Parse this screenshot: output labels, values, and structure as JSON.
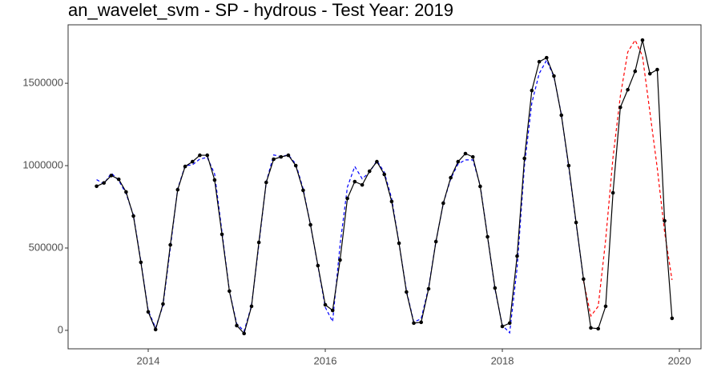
{
  "chart_data": {
    "type": "line",
    "title": "an_wavelet_svm - SP - hydrous - Test Year: 2019",
    "x": [
      2013.417,
      2013.5,
      2013.583,
      2013.667,
      2013.75,
      2013.833,
      2013.917,
      2014,
      2014.083,
      2014.167,
      2014.25,
      2014.333,
      2014.417,
      2014.5,
      2014.583,
      2014.667,
      2014.75,
      2014.833,
      2014.917,
      2015,
      2015.083,
      2015.167,
      2015.25,
      2015.333,
      2015.417,
      2015.5,
      2015.583,
      2015.667,
      2015.75,
      2015.833,
      2015.917,
      2016,
      2016.083,
      2016.167,
      2016.25,
      2016.333,
      2016.417,
      2016.5,
      2016.583,
      2016.667,
      2016.75,
      2016.833,
      2016.917,
      2017,
      2017.083,
      2017.167,
      2017.25,
      2017.333,
      2017.417,
      2017.5,
      2017.583,
      2017.667,
      2017.75,
      2017.833,
      2017.917,
      2018,
      2018.083,
      2018.167,
      2018.25,
      2018.333,
      2018.417,
      2018.5,
      2018.583,
      2018.667,
      2018.75,
      2018.833,
      2018.917,
      2019,
      2019.083,
      2019.167,
      2019.25,
      2019.333,
      2019.417,
      2019.5,
      2019.583,
      2019.667,
      2019.75,
      2019.833,
      2019.917
    ],
    "series": [
      {
        "color": "#0000ff",
        "dashed": true,
        "markers": false,
        "values": [
          915000,
          890000,
          955000,
          910000,
          830000,
          700000,
          420000,
          120000,
          15000,
          150000,
          500000,
          860000,
          1000000,
          1005000,
          1040000,
          1050000,
          950000,
          600000,
          240000,
          40000,
          -5000,
          150000,
          520000,
          900000,
          1065000,
          1055000,
          1065000,
          1010000,
          860000,
          640000,
          390000,
          140000,
          53000,
          520000,
          870000,
          995000,
          920000,
          960000,
          1030000,
          960000,
          800000,
          530000,
          240000,
          50000,
          70000,
          260000,
          540000,
          770000,
          920000,
          1010000,
          1035000,
          1035000,
          880000,
          570000,
          250000,
          30000,
          -15000,
          380000,
          1000000,
          1380000,
          1560000,
          1640000,
          1540000,
          1310000,
          990000,
          650000,
          310000,
          null,
          null,
          null,
          null,
          null,
          null,
          null,
          null,
          null,
          null,
          null,
          null
        ]
      },
      {
        "color": "#ff0000",
        "dashed": true,
        "markers": false,
        "values": [
          null,
          null,
          null,
          null,
          null,
          null,
          null,
          null,
          null,
          null,
          null,
          null,
          null,
          null,
          null,
          null,
          null,
          null,
          null,
          null,
          null,
          null,
          null,
          null,
          null,
          null,
          null,
          null,
          null,
          null,
          null,
          null,
          null,
          null,
          null,
          null,
          null,
          null,
          null,
          null,
          null,
          null,
          null,
          null,
          null,
          null,
          null,
          null,
          null,
          null,
          null,
          null,
          null,
          null,
          null,
          null,
          null,
          null,
          null,
          null,
          null,
          null,
          null,
          null,
          null,
          null,
          300000,
          87000,
          146000,
          549000,
          1050000,
          1422000,
          1690000,
          1762000,
          1665000,
          1325000,
          985000,
          597000,
          306000
        ]
      },
      {
        "color": "#000000",
        "dashed": false,
        "markers": true,
        "values": [
          875000,
          895000,
          940000,
          917000,
          840000,
          694000,
          413000,
          112000,
          5000,
          160000,
          519000,
          854000,
          995000,
          1024000,
          1063000,
          1063000,
          913000,
          583000,
          238000,
          29000,
          -19000,
          146000,
          534000,
          898000,
          1039000,
          1053000,
          1063000,
          1000000,
          850000,
          641000,
          393000,
          155000,
          121000,
          427000,
          801000,
          903000,
          883000,
          966000,
          1024000,
          947000,
          782000,
          529000,
          233000,
          44000,
          49000,
          252000,
          539000,
          772000,
          927000,
          1024000,
          1073000,
          1053000,
          874000,
          568000,
          257000,
          24000,
          44000,
          451000,
          1044000,
          1456000,
          1631000,
          1655000,
          1544000,
          1306000,
          1000000,
          655000,
          311000,
          15000,
          10000,
          146000,
          835000,
          1354000,
          1461000,
          1573000,
          1762000,
          1558000,
          1583000,
          665000,
          73000
        ]
      }
    ],
    "xlim": [
      2013.095,
      2020.244
    ],
    "xticks": [
      2014,
      2016,
      2018,
      2020
    ],
    "ylim": [
      -112000,
      1855000
    ],
    "yticks": [
      0,
      500000,
      1000000,
      1500000
    ],
    "grid": false
  }
}
